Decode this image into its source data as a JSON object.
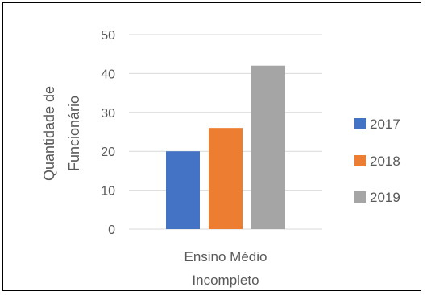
{
  "chart_data": {
    "type": "bar",
    "categories": [
      "Ensino Médio Incompleto"
    ],
    "category_lines": [
      "Ensino Médio",
      "Incompleto"
    ],
    "series": [
      {
        "name": "2017",
        "values": [
          20
        ],
        "color": "#4472C4"
      },
      {
        "name": "2018",
        "values": [
          26
        ],
        "color": "#ED7D31"
      },
      {
        "name": "2019",
        "values": [
          42
        ],
        "color": "#A5A5A5"
      }
    ],
    "ylabel_lines": [
      "Quantidade de",
      "Funcionário"
    ],
    "ylim": [
      0,
      50
    ],
    "yticks": [
      0,
      10,
      20,
      30,
      40,
      50
    ],
    "grid": true,
    "legend": "right"
  }
}
